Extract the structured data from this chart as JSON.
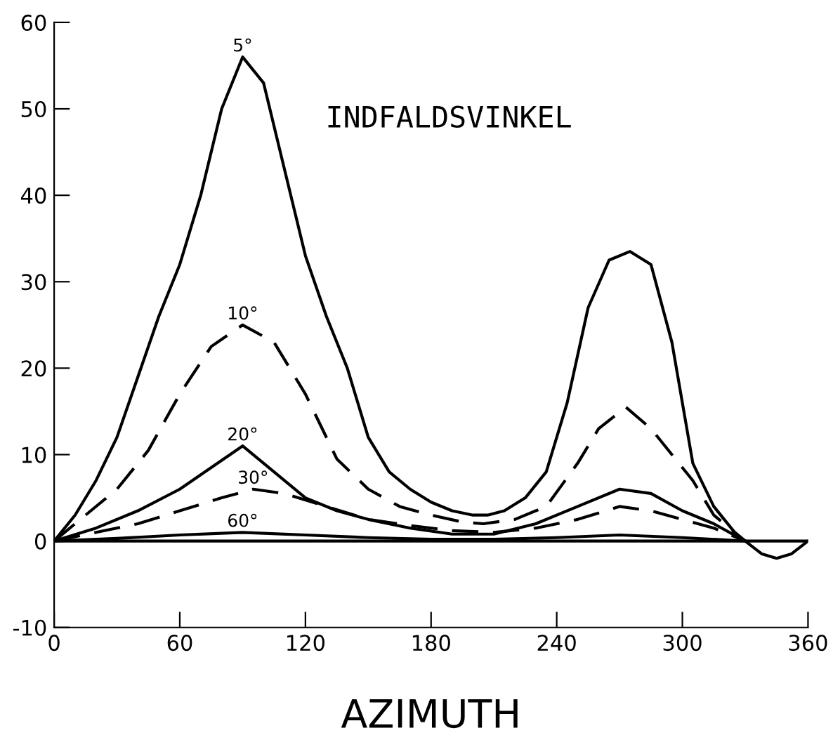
{
  "chart_data": {
    "type": "line",
    "xlabel": "AZIMUTH",
    "annotations": [
      "INDFALDSVINKEL"
    ],
    "xlim": [
      0,
      360
    ],
    "xticks": [
      0,
      60,
      120,
      180,
      240,
      300,
      360
    ],
    "ylim": [
      -10,
      60
    ],
    "yticks": [
      {
        "value": -10,
        "label": "-10"
      },
      0,
      10,
      20,
      30,
      40,
      50,
      60
    ],
    "grid": false,
    "ref_lines": [
      {
        "axis": "y",
        "value": 0,
        "color": "#000000"
      }
    ],
    "legend": false,
    "marker": "none",
    "series": [
      {
        "name": "5°",
        "color": "#000000",
        "line_style": "solid",
        "x": [
          0,
          10,
          20,
          30,
          40,
          50,
          60,
          70,
          80,
          90,
          100,
          110,
          120,
          130,
          140,
          150,
          160,
          170,
          180,
          190,
          200,
          207,
          215,
          225,
          235,
          245,
          255,
          265,
          275,
          285,
          295,
          305,
          315,
          325,
          330,
          338,
          345,
          352,
          360
        ],
        "values": [
          0,
          3,
          7,
          12,
          19,
          26,
          32,
          40,
          50,
          56,
          53,
          43,
          33,
          26,
          20,
          12,
          8,
          6,
          4.5,
          3.5,
          3,
          3,
          3.5,
          5,
          8,
          16,
          27,
          32.5,
          33.5,
          32,
          23,
          9,
          4,
          1,
          0,
          -1.5,
          -2,
          -1.5,
          0
        ]
      },
      {
        "name": "10°",
        "color": "#000000",
        "line_style": "dashed",
        "x": [
          0,
          15,
          30,
          45,
          60,
          75,
          90,
          105,
          120,
          135,
          150,
          165,
          180,
          195,
          205,
          220,
          235,
          250,
          260,
          273,
          285,
          295,
          305,
          315,
          330
        ],
        "values": [
          0,
          3,
          6,
          10.5,
          17,
          22.5,
          25,
          23,
          17,
          9.5,
          6,
          4,
          3,
          2.2,
          2,
          2.5,
          4,
          9,
          13,
          15.5,
          13,
          10,
          7,
          3,
          0
        ]
      },
      {
        "name": "20°",
        "color": "#000000",
        "line_style": "solid",
        "x": [
          0,
          20,
          40,
          60,
          75,
          90,
          105,
          120,
          135,
          150,
          170,
          190,
          210,
          230,
          250,
          270,
          285,
          300,
          315,
          330
        ],
        "values": [
          0,
          1.5,
          3.5,
          6,
          8.5,
          11,
          8,
          5,
          3.5,
          2.5,
          1.5,
          0.8,
          0.8,
          2,
          4,
          6,
          5.5,
          3.5,
          2,
          0
        ]
      },
      {
        "name": "30°",
        "color": "#000000",
        "line_style": "dashed",
        "x": [
          0,
          20,
          40,
          60,
          80,
          95,
          110,
          130,
          150,
          170,
          190,
          210,
          230,
          250,
          270,
          285,
          300,
          315,
          330
        ],
        "values": [
          0,
          1,
          2,
          3.5,
          5,
          6,
          5.5,
          4,
          2.5,
          1.8,
          1.2,
          1,
          1.5,
          2.5,
          4,
          3.5,
          2.5,
          1.5,
          0
        ]
      },
      {
        "name": "60°",
        "color": "#000000",
        "line_style": "solid",
        "x": [
          0,
          30,
          60,
          90,
          120,
          150,
          180,
          210,
          240,
          270,
          300,
          330
        ],
        "values": [
          0,
          0.3,
          0.7,
          1,
          0.7,
          0.4,
          0.2,
          0.2,
          0.4,
          0.7,
          0.4,
          0
        ]
      }
    ]
  }
}
